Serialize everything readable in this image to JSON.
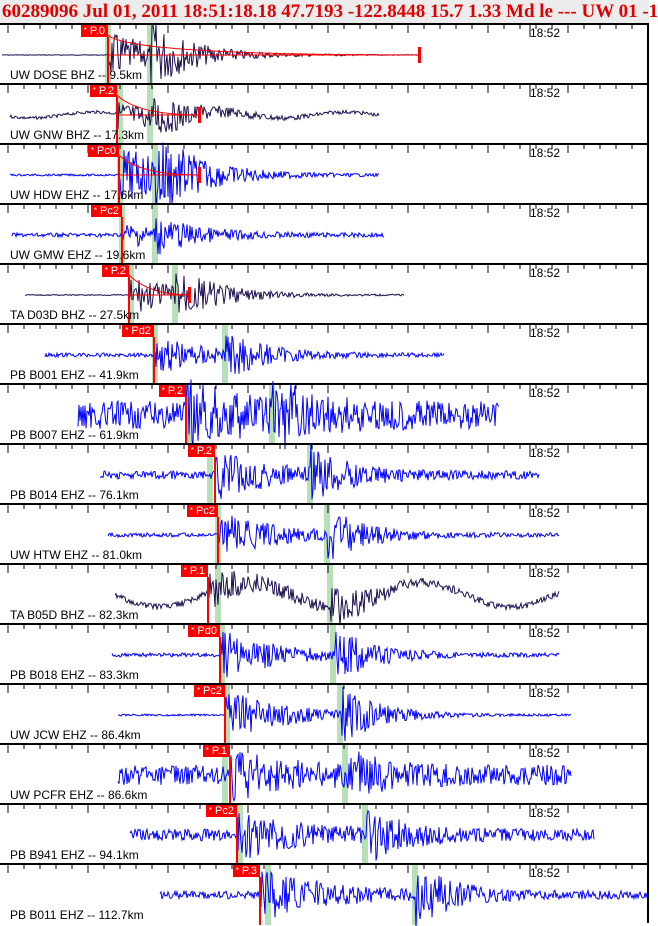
{
  "header": {
    "title": "60289096 Jul 01, 2011 18:51:18.18    47.7193 -122.8448 15.7 1.33 Md le --- UW 01   -1"
  },
  "colors": {
    "pick": "#ff0000",
    "green": "#b8e0b8",
    "bhz": "#1e0f50",
    "ehz": "#0000ff"
  },
  "panels": [
    {
      "station": "UW DOSE BHZ -- 9.5km",
      "pick": "P.0",
      "time": "18:52"
    },
    {
      "station": "UW GNW BHZ -- 17.3km",
      "pick": "P.2",
      "time": "18:52"
    },
    {
      "station": "UW HDW EHZ -- 17.6km",
      "pick": "Pc0",
      "time": "18:52"
    },
    {
      "station": "UW GMW EHZ -- 19.6km",
      "pick": "Pc2",
      "time": "18:52"
    },
    {
      "station": "TA D03D BHZ -- 27.5km",
      "pick": "P.2",
      "time": "18:52"
    },
    {
      "station": "PB B001 EHZ -- 41.9km",
      "pick": "Pd2",
      "time": "18:52"
    },
    {
      "station": "PB B007 EHZ -- 61.9km",
      "pick": "P.2",
      "time": "18:52"
    },
    {
      "station": "PB B014 EHZ -- 76.1km",
      "pick": "P.2",
      "time": "18:52"
    },
    {
      "station": "UW HTW EHZ -- 81.0km",
      "pick": "Pc2",
      "time": "18:52"
    },
    {
      "station": "TA B05D BHZ -- 82.3km",
      "pick": "P.1",
      "time": "18:52"
    },
    {
      "station": "PB B018 EHZ -- 83.3km",
      "pick": "Pd0",
      "time": "18:52"
    },
    {
      "station": "UW JCW EHZ -- 86.4km",
      "pick": "Pc2",
      "time": "18:52"
    },
    {
      "station": "UW PCFR EHZ -- 86.6km",
      "pick": "P.1",
      "time": "18:52"
    },
    {
      "station": "PB B941 EHZ -- 94.1km",
      "pick": "Pc2",
      "time": "18:52"
    },
    {
      "station": "PB B011 EHZ -- 112.7km",
      "pick": "P.3",
      "time": "18:52"
    }
  ]
}
